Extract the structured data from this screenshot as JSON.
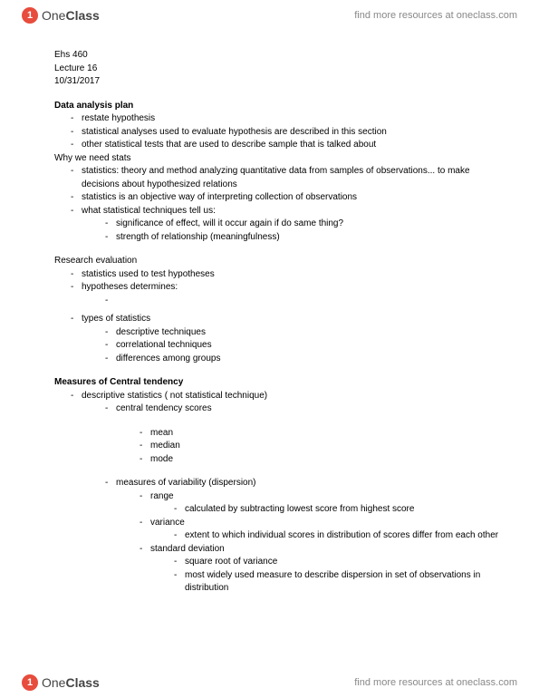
{
  "brand": {
    "icon_glyph": "1",
    "word1": "One",
    "word2": "Class"
  },
  "resources_text": "find more resources at oneclass.com",
  "meta": {
    "course": "Ehs 460",
    "lecture": "Lecture 16",
    "date": "10/31/2017"
  },
  "s1": {
    "heading": "Data analysis plan",
    "b1": "restate hypothesis",
    "b2": "statistical analyses used to evaluate hypothesis are described in this section",
    "b3": "other statistical tests that are used to describe sample that is talked about"
  },
  "why": {
    "heading": "Why we need stats",
    "b1": "statistics: theory and method analyzing quantitative data from samples of observations... to make decisions about hypothesized relations",
    "b2": "statistics is an objective way of interpreting collection of observations",
    "b3": "what statistical techniques tell us:",
    "b3a": "significance of effect, will it occur again if do same thing?",
    "b3b": "strength of relationship (meaningfulness)"
  },
  "research": {
    "heading": "Research evaluation",
    "b1": "statistics used to test hypotheses",
    "b2": "hypotheses determines:",
    "b3": "types of statistics",
    "b3a": "descriptive techniques",
    "b3b": "correlational techniques",
    "b3c": "differences among groups"
  },
  "measures": {
    "heading": "Measures of Central tendency",
    "b1": "descriptive statistics ( not statistical technique)",
    "b1a": "central tendency scores",
    "mean": "mean",
    "median": "median",
    "mode": "mode",
    "var_head": "measures of variability (dispersion)",
    "range": "range",
    "range_desc": "calculated by subtracting lowest score from highest score",
    "variance": "variance",
    "variance_desc": "extent to which individual scores in distribution of scores differ from each other",
    "sd": "standard deviation",
    "sd1": "square root of variance",
    "sd2": "most widely used measure to describe dispersion in set of observations in distribution"
  }
}
